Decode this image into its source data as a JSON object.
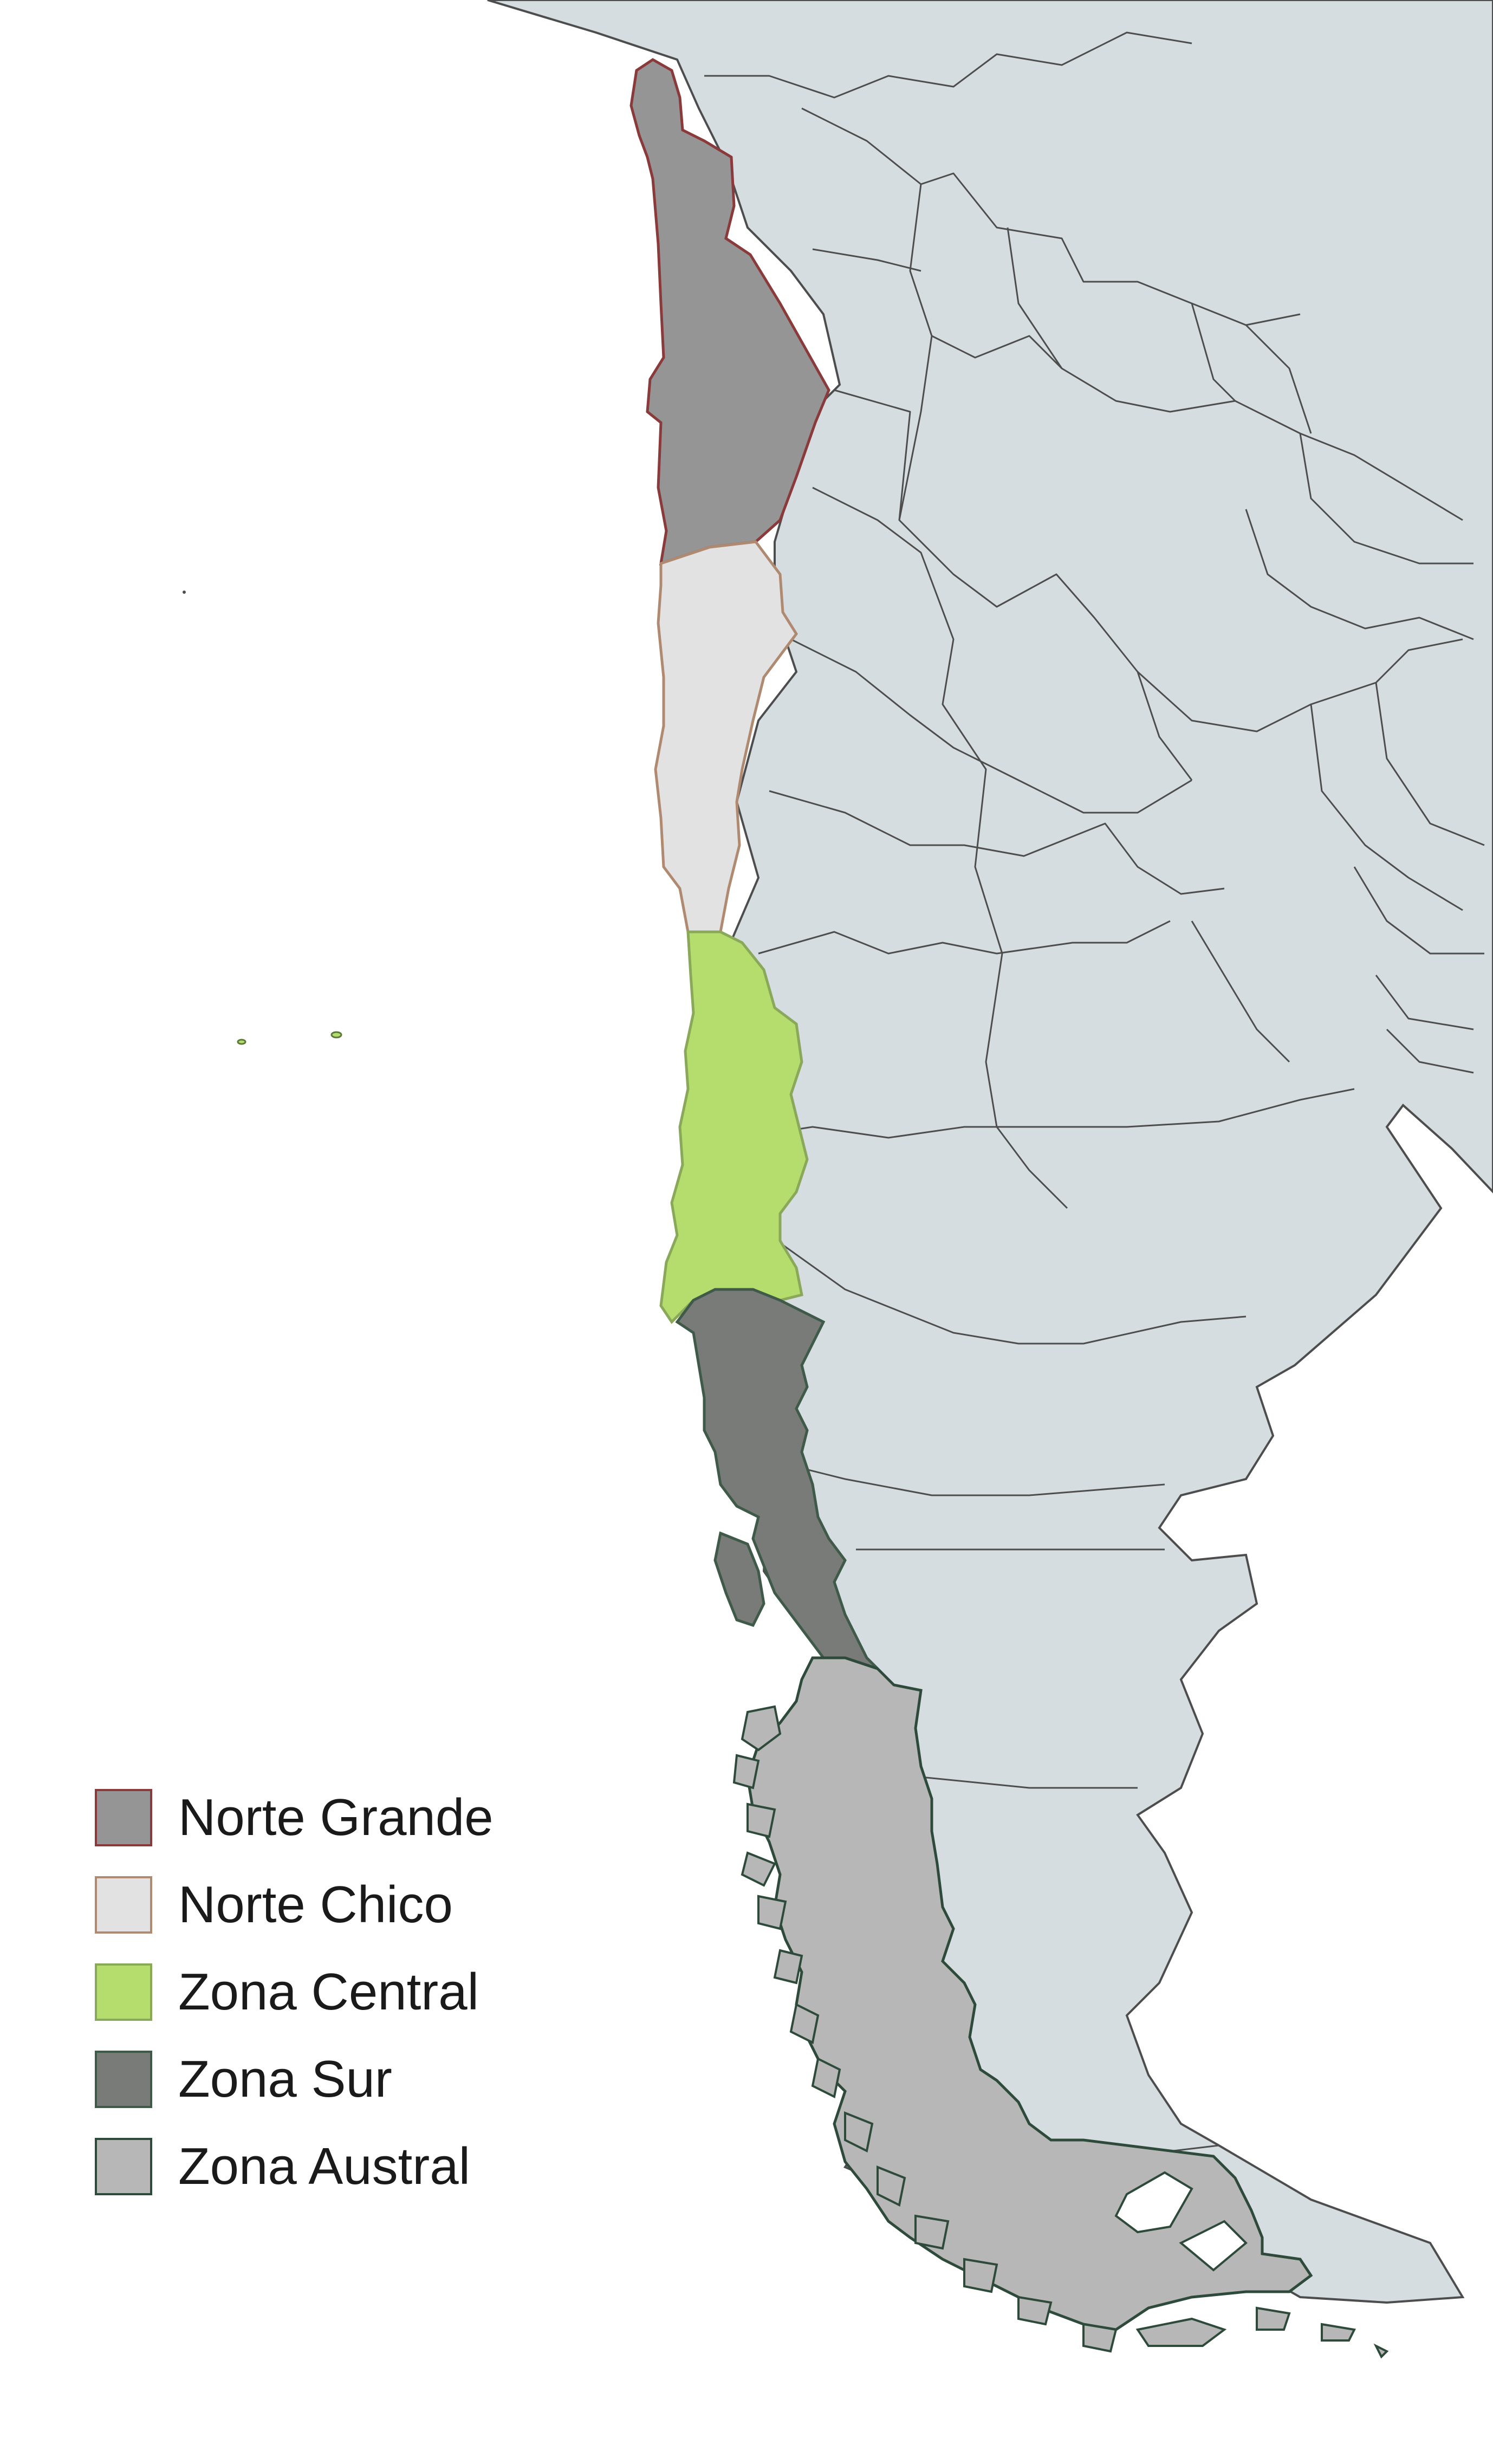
{
  "map": {
    "colors": {
      "ocean": "#ffffff",
      "land": "#d5dde0",
      "land_border": "#4d4d4d"
    },
    "zones": [
      {
        "id": "norte-grande",
        "label": "Norte Grande",
        "fill": "#959595",
        "stroke": "#8a3a3a"
      },
      {
        "id": "norte-chico",
        "label": "Norte Chico",
        "fill": "#e2e2e2",
        "stroke": "#b08a70"
      },
      {
        "id": "zona-central",
        "label": "Zona Central",
        "fill": "#b5dd6e",
        "stroke": "#8aa85a"
      },
      {
        "id": "zona-sur",
        "label": "Zona Sur",
        "fill": "#787b78",
        "stroke": "#3f5a48"
      },
      {
        "id": "zona-austral",
        "label": "Zona Austral",
        "fill": "#b7b7b7",
        "stroke": "#2e4a3a"
      }
    ]
  },
  "legend": {
    "items": [
      {
        "label": "Norte Grande",
        "fill": "#959595",
        "stroke": "#8a3a3a"
      },
      {
        "label": "Norte Chico",
        "fill": "#e2e2e2",
        "stroke": "#b08a70"
      },
      {
        "label": "Zona Central",
        "fill": "#b5dd6e",
        "stroke": "#8aa85a"
      },
      {
        "label": "Zona Sur",
        "fill": "#787b78",
        "stroke": "#3f5a48"
      },
      {
        "label": "Zona Austral",
        "fill": "#b7b7b7",
        "stroke": "#2e4a3a"
      }
    ]
  }
}
